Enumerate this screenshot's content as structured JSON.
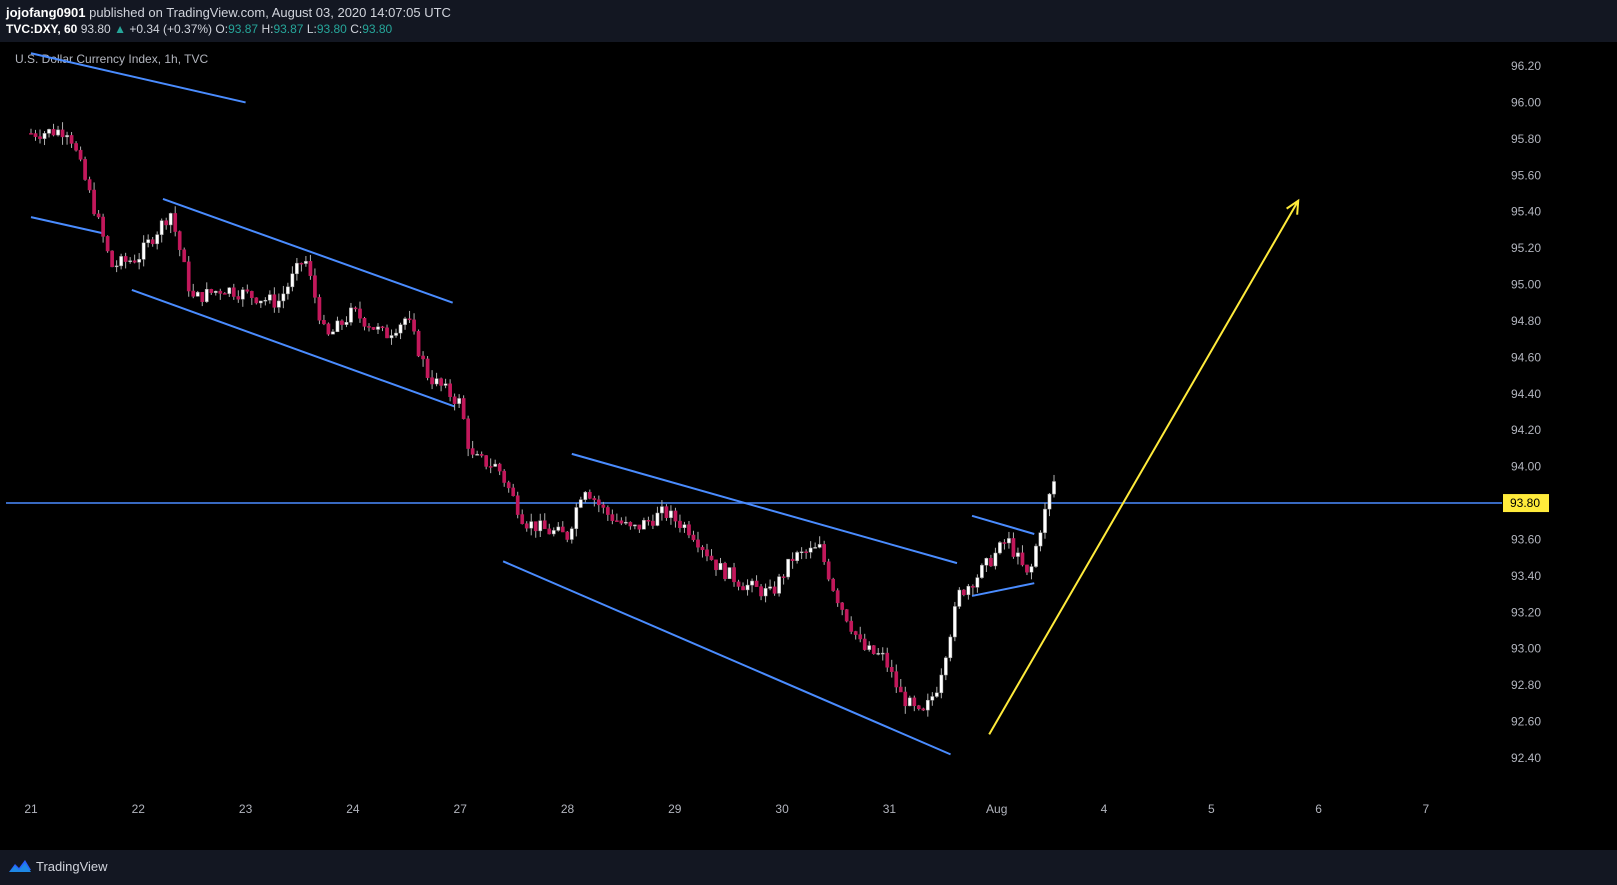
{
  "header": {
    "author": "jojofang0901",
    "published_text": "published on TradingView.com, August 03, 2020 14:07:05 UTC",
    "symbol": "TVC:DXY, 60",
    "last": "93.80",
    "change": "+0.34 (+0.37%)",
    "o_label": "O:",
    "o_value": "93.87",
    "h_label": "H:",
    "h_value": "93.87",
    "l_label": "L:",
    "l_value": "93.80",
    "c_label": "C:",
    "c_value": "93.80"
  },
  "footer": {
    "brand": "TradingView",
    "logo_icon": "tradingview-logo-icon"
  },
  "colors": {
    "up": "#ffffff",
    "down": "#c2185b",
    "line": "#4a8cff",
    "arrow": "#ffeb3b",
    "price_tag": "#ffeb3b"
  },
  "chart_data": {
    "type": "candlestick",
    "title": "U.S. Dollar Currency Index, 1h, TVC",
    "y_ticks": [
      "92.40",
      "92.60",
      "92.80",
      "93.00",
      "93.20",
      "93.40",
      "93.60",
      "93.80",
      "94.00",
      "94.20",
      "94.40",
      "94.60",
      "94.80",
      "95.00",
      "95.20",
      "95.40",
      "95.60",
      "95.80",
      "96.00",
      "96.20"
    ],
    "ylim": [
      92.3,
      96.35
    ],
    "x_ticks": [
      {
        "label": "21",
        "d": 0
      },
      {
        "label": "22",
        "d": 1
      },
      {
        "label": "23",
        "d": 2
      },
      {
        "label": "24",
        "d": 3
      },
      {
        "label": "27",
        "d": 4
      },
      {
        "label": "28",
        "d": 5
      },
      {
        "label": "29",
        "d": 6
      },
      {
        "label": "30",
        "d": 7
      },
      {
        "label": "31",
        "d": 8
      },
      {
        "label": "Aug",
        "d": 9
      },
      {
        "label": "4",
        "d": 10
      },
      {
        "label": "5",
        "d": 11
      },
      {
        "label": "6",
        "d": 12
      },
      {
        "label": "7",
        "d": 13
      }
    ],
    "price_anchors": [
      [
        0,
        95.83
      ],
      [
        0.35,
        95.85
      ],
      [
        0.6,
        95.4
      ],
      [
        0.75,
        95.1
      ],
      [
        1.0,
        95.15
      ],
      [
        1.3,
        95.4
      ],
      [
        1.5,
        94.92
      ],
      [
        1.8,
        94.98
      ],
      [
        2.3,
        94.9
      ],
      [
        2.55,
        95.15
      ],
      [
        2.75,
        94.7
      ],
      [
        3.0,
        94.85
      ],
      [
        3.3,
        94.72
      ],
      [
        3.5,
        94.82
      ],
      [
        3.7,
        94.5
      ],
      [
        4.0,
        94.35
      ],
      [
        4.1,
        94.05
      ],
      [
        4.35,
        94.0
      ],
      [
        4.6,
        93.7
      ],
      [
        4.8,
        93.65
      ],
      [
        5.0,
        93.62
      ],
      [
        5.15,
        93.9
      ],
      [
        5.35,
        93.75
      ],
      [
        5.6,
        93.65
      ],
      [
        5.9,
        93.75
      ],
      [
        6.15,
        93.65
      ],
      [
        6.4,
        93.45
      ],
      [
        6.65,
        93.35
      ],
      [
        6.9,
        93.3
      ],
      [
        7.1,
        93.5
      ],
      [
        7.35,
        93.55
      ],
      [
        7.5,
        93.3
      ],
      [
        7.75,
        93.0
      ],
      [
        7.95,
        92.95
      ],
      [
        8.1,
        92.75
      ],
      [
        8.3,
        92.62
      ],
      [
        8.45,
        92.8
      ],
      [
        8.65,
        93.3
      ],
      [
        8.85,
        93.42
      ],
      [
        9.1,
        93.6
      ],
      [
        9.3,
        93.38
      ],
      [
        9.4,
        93.65
      ],
      [
        9.55,
        93.95
      ]
    ],
    "last_price": 93.8,
    "last_price_label": "93.80",
    "horizontal_lines": [
      93.8
    ],
    "trend_lines": [
      [
        [
          0.0,
          96.27
        ],
        [
          2.0,
          96.0
        ]
      ],
      [
        [
          0.0,
          95.37
        ],
        [
          0.68,
          95.28
        ]
      ],
      [
        [
          1.23,
          95.47
        ],
        [
          3.93,
          94.9
        ]
      ],
      [
        [
          0.94,
          94.97
        ],
        [
          3.95,
          94.33
        ]
      ],
      [
        [
          5.04,
          94.07
        ],
        [
          8.63,
          93.47
        ]
      ],
      [
        [
          4.4,
          93.48
        ],
        [
          8.57,
          92.42
        ]
      ],
      [
        [
          8.77,
          93.73
        ],
        [
          9.35,
          93.63
        ]
      ],
      [
        [
          8.77,
          93.29
        ],
        [
          9.35,
          93.36
        ]
      ]
    ],
    "arrow": [
      [
        8.93,
        92.53
      ],
      [
        11.81,
        95.46
      ]
    ]
  }
}
